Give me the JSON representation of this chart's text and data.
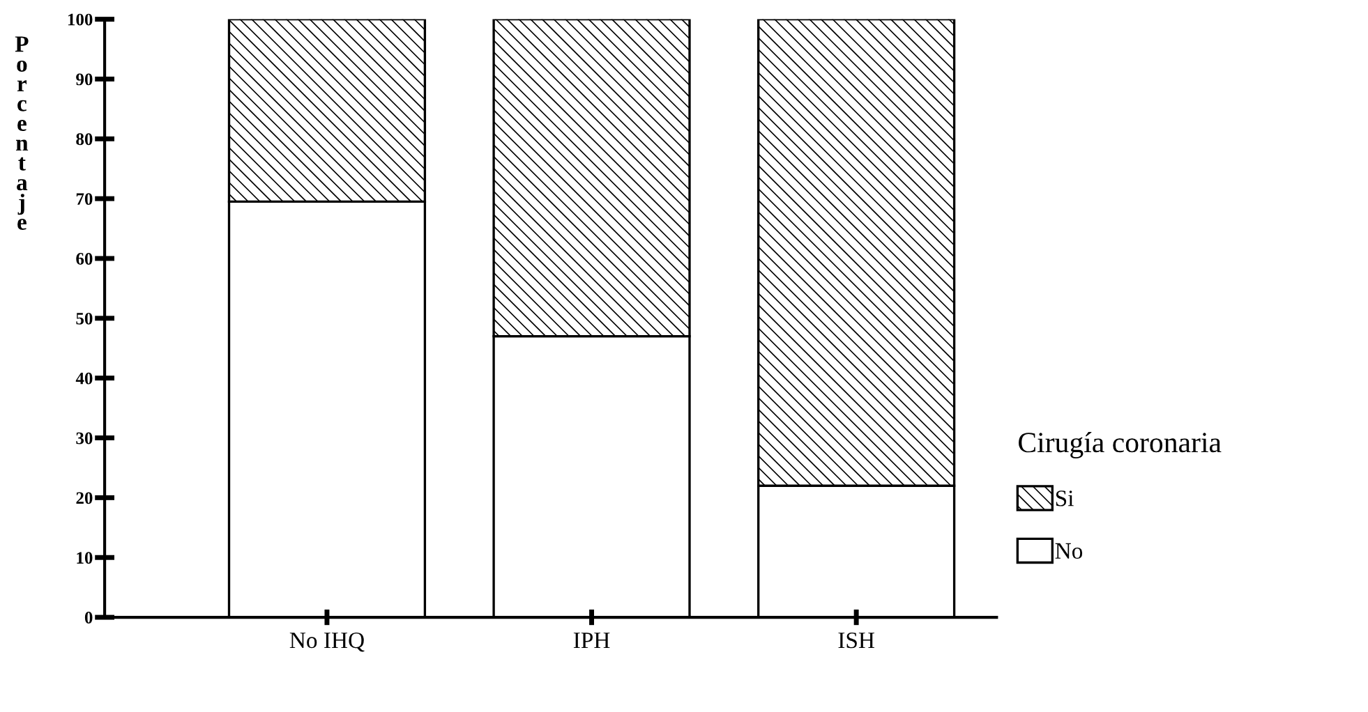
{
  "chart_data": {
    "type": "bar",
    "stacked": true,
    "ylabel": "Porcentaje",
    "legend_title": "Cirugía coronaria",
    "legend": "right",
    "categories": [
      "No IHQ",
      "IPH",
      "ISH"
    ],
    "series": [
      {
        "name": "No",
        "color": "#ffffff",
        "values": [
          69.5,
          47,
          22
        ]
      },
      {
        "name": "Si",
        "color": "#000000",
        "values": [
          30.5,
          53,
          78
        ]
      }
    ],
    "ylim": [
      0,
      100
    ],
    "yticks": [
      0,
      10,
      20,
      30,
      40,
      50,
      60,
      70,
      80,
      90,
      100
    ],
    "grid": false
  }
}
